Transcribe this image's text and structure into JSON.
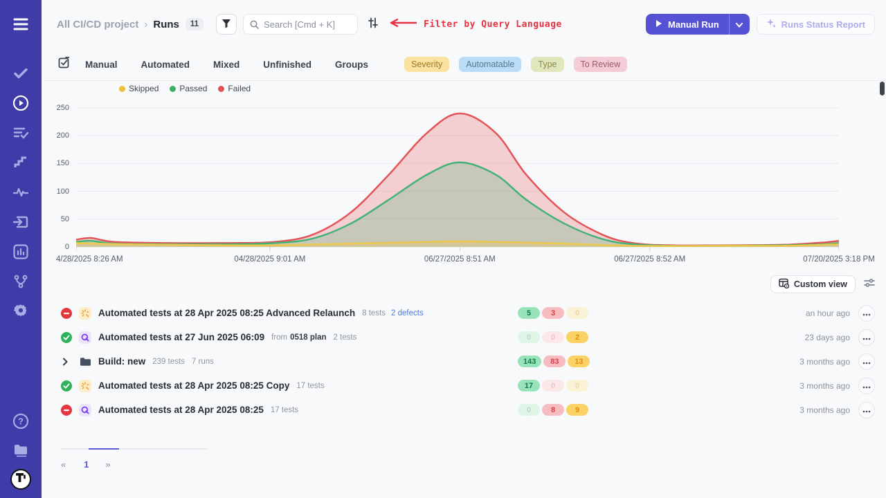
{
  "header": {
    "breadcrumb": {
      "project": "All CI/CD project",
      "separator": "›",
      "section": "Runs",
      "count": "11"
    },
    "search": {
      "placeholder": "Search [Cmd + K]"
    },
    "annotation": "Filter by Query Language",
    "manual_run_label": "Manual Run",
    "runs_status_report_label": "Runs Status Report"
  },
  "tabs": {
    "items": [
      "Manual",
      "Automated",
      "Mixed",
      "Unfinished",
      "Groups"
    ]
  },
  "tags": [
    {
      "label": "Severity",
      "bg": "#fbe2a0",
      "fg": "#9c7a22"
    },
    {
      "label": "Automatable",
      "bg": "#badcf7",
      "fg": "#55788f"
    },
    {
      "label": "Type",
      "bg": "#e2e6bd",
      "fg": "#888c4a"
    },
    {
      "label": "To Review",
      "bg": "#f3ccd6",
      "fg": "#9d5b70"
    }
  ],
  "chart_data": {
    "type": "area",
    "grid": true,
    "legend_position": "top-left",
    "legend": [
      {
        "label": "Skipped",
        "color": "#e9c23d"
      },
      {
        "label": "Passed",
        "color": "#3fae67"
      },
      {
        "label": "Failed",
        "color": "#e05158"
      }
    ],
    "ylim": [
      0,
      250
    ],
    "yticks": [
      250,
      200,
      150,
      100,
      50,
      0
    ],
    "x_ticks": [
      {
        "label": "4/28/2025 8:26 AM",
        "f": 0.0
      },
      {
        "label": "04/28/2025 9:01 AM",
        "f": 0.254
      },
      {
        "label": "06/27/2025 8:51 AM",
        "f": 0.503
      },
      {
        "label": "06/27/2025 8:52 AM",
        "f": 0.752
      },
      {
        "label": "07/20/2025 3:18 PM",
        "f": 1.0
      }
    ],
    "series": [
      {
        "name": "Failed",
        "color": "#e25458",
        "fill": "rgba(226,84,88,0.25)",
        "points": [
          [
            0,
            13
          ],
          [
            0.02,
            16
          ],
          [
            0.05,
            9
          ],
          [
            0.12,
            7
          ],
          [
            0.2,
            7
          ],
          [
            0.26,
            9
          ],
          [
            0.31,
            22
          ],
          [
            0.36,
            62
          ],
          [
            0.41,
            130
          ],
          [
            0.46,
            205
          ],
          [
            0.503,
            240
          ],
          [
            0.55,
            205
          ],
          [
            0.59,
            130
          ],
          [
            0.64,
            62
          ],
          [
            0.69,
            22
          ],
          [
            0.73,
            7
          ],
          [
            0.78,
            3
          ],
          [
            0.86,
            3
          ],
          [
            0.93,
            4
          ],
          [
            0.98,
            8
          ],
          [
            1,
            11
          ]
        ]
      },
      {
        "name": "Passed",
        "color": "#43b275",
        "fill": "rgba(67,178,117,0.25)",
        "points": [
          [
            0,
            9
          ],
          [
            0.02,
            11
          ],
          [
            0.05,
            6
          ],
          [
            0.12,
            5
          ],
          [
            0.2,
            5
          ],
          [
            0.26,
            7
          ],
          [
            0.31,
            15
          ],
          [
            0.36,
            42
          ],
          [
            0.41,
            85
          ],
          [
            0.46,
            130
          ],
          [
            0.503,
            152
          ],
          [
            0.55,
            130
          ],
          [
            0.59,
            85
          ],
          [
            0.64,
            42
          ],
          [
            0.69,
            14
          ],
          [
            0.73,
            5
          ],
          [
            0.78,
            2
          ],
          [
            0.86,
            2
          ],
          [
            0.93,
            3
          ],
          [
            0.98,
            5
          ],
          [
            1,
            7
          ]
        ]
      },
      {
        "name": "Skipped",
        "color": "#ecc64a",
        "fill": "rgba(236,198,74,0.30)",
        "points": [
          [
            0,
            7
          ],
          [
            0.05,
            5
          ],
          [
            0.12,
            4
          ],
          [
            0.2,
            3
          ],
          [
            0.26,
            3
          ],
          [
            0.36,
            6
          ],
          [
            0.46,
            9
          ],
          [
            0.503,
            10
          ],
          [
            0.55,
            9
          ],
          [
            0.64,
            6
          ],
          [
            0.73,
            2
          ],
          [
            0.86,
            2
          ],
          [
            0.93,
            2
          ],
          [
            1,
            5
          ]
        ]
      }
    ]
  },
  "toolbar": {
    "custom_view_label": "Custom view"
  },
  "runs": [
    {
      "status": "failed",
      "icon": "sparkle",
      "title": "Automated tests at 28 Apr 2025 08:25 Advanced Relaunch",
      "meta": [
        {
          "text": "8 tests",
          "bold": false
        }
      ],
      "defects_link": "2 defects",
      "counts": [
        {
          "value": "5",
          "kind": "passed",
          "muted": false
        },
        {
          "value": "3",
          "kind": "failed",
          "muted": false
        },
        {
          "value": "0",
          "kind": "skipped",
          "muted": true
        }
      ],
      "time": "an hour ago"
    },
    {
      "status": "passed",
      "icon": "qase",
      "title": "Automated tests at 27 Jun 2025 06:09",
      "meta": [
        {
          "text": "from",
          "bold": false
        },
        {
          "text": "0518 plan",
          "bold": true
        },
        {
          "text": "2 tests",
          "bold": false
        }
      ],
      "defects_link": "",
      "counts": [
        {
          "value": "0",
          "kind": "passed",
          "muted": true
        },
        {
          "value": "0",
          "kind": "failed",
          "muted": true
        },
        {
          "value": "2",
          "kind": "skipped",
          "muted": false
        }
      ],
      "time": "23 days ago"
    },
    {
      "status": "group",
      "icon": "folder",
      "title": "Build: new",
      "meta": [
        {
          "text": "239 tests",
          "bold": false
        },
        {
          "text": "7 runs",
          "bold": false
        }
      ],
      "defects_link": "",
      "counts": [
        {
          "value": "143",
          "kind": "passed",
          "muted": false
        },
        {
          "value": "83",
          "kind": "failed",
          "muted": false
        },
        {
          "value": "13",
          "kind": "skipped",
          "muted": false
        }
      ],
      "time": "3 months ago"
    },
    {
      "status": "passed",
      "icon": "sparkle",
      "title": "Automated tests at 28 Apr 2025 08:25 Copy",
      "meta": [
        {
          "text": "17 tests",
          "bold": false
        }
      ],
      "defects_link": "",
      "counts": [
        {
          "value": "17",
          "kind": "passed",
          "muted": false
        },
        {
          "value": "0",
          "kind": "failed",
          "muted": true
        },
        {
          "value": "0",
          "kind": "skipped",
          "muted": true
        }
      ],
      "time": "3 months ago"
    },
    {
      "status": "failed",
      "icon": "qase",
      "title": "Automated tests at 28 Apr 2025 08:25",
      "meta": [
        {
          "text": "17 tests",
          "bold": false
        }
      ],
      "defects_link": "",
      "counts": [
        {
          "value": "0",
          "kind": "passed",
          "muted": true
        },
        {
          "value": "8",
          "kind": "failed",
          "muted": false
        },
        {
          "value": "9",
          "kind": "skipped",
          "muted": false
        }
      ],
      "time": "3 months ago"
    }
  ],
  "pagination": {
    "prev": "«",
    "current": "1",
    "next": "»"
  },
  "icons": [
    "menu-icon",
    "check-icon",
    "play-circle-icon",
    "list-check-icon",
    "steps-icon",
    "pulse-icon",
    "import-icon",
    "bar-chart-icon",
    "branch-icon",
    "gear-icon",
    "help-icon",
    "folder-icon",
    "logo",
    "funnel-icon",
    "search-icon",
    "sliders-icon",
    "arrow-left-icon",
    "play-icon",
    "chevron-down-icon",
    "sparkles-icon",
    "bulk-select-icon",
    "table-gear-icon",
    "more-icon",
    "status-passed-icon",
    "status-failed-icon",
    "chevron-right-icon",
    "run-sparkle-icon",
    "run-qase-icon",
    "run-folder-icon"
  ]
}
